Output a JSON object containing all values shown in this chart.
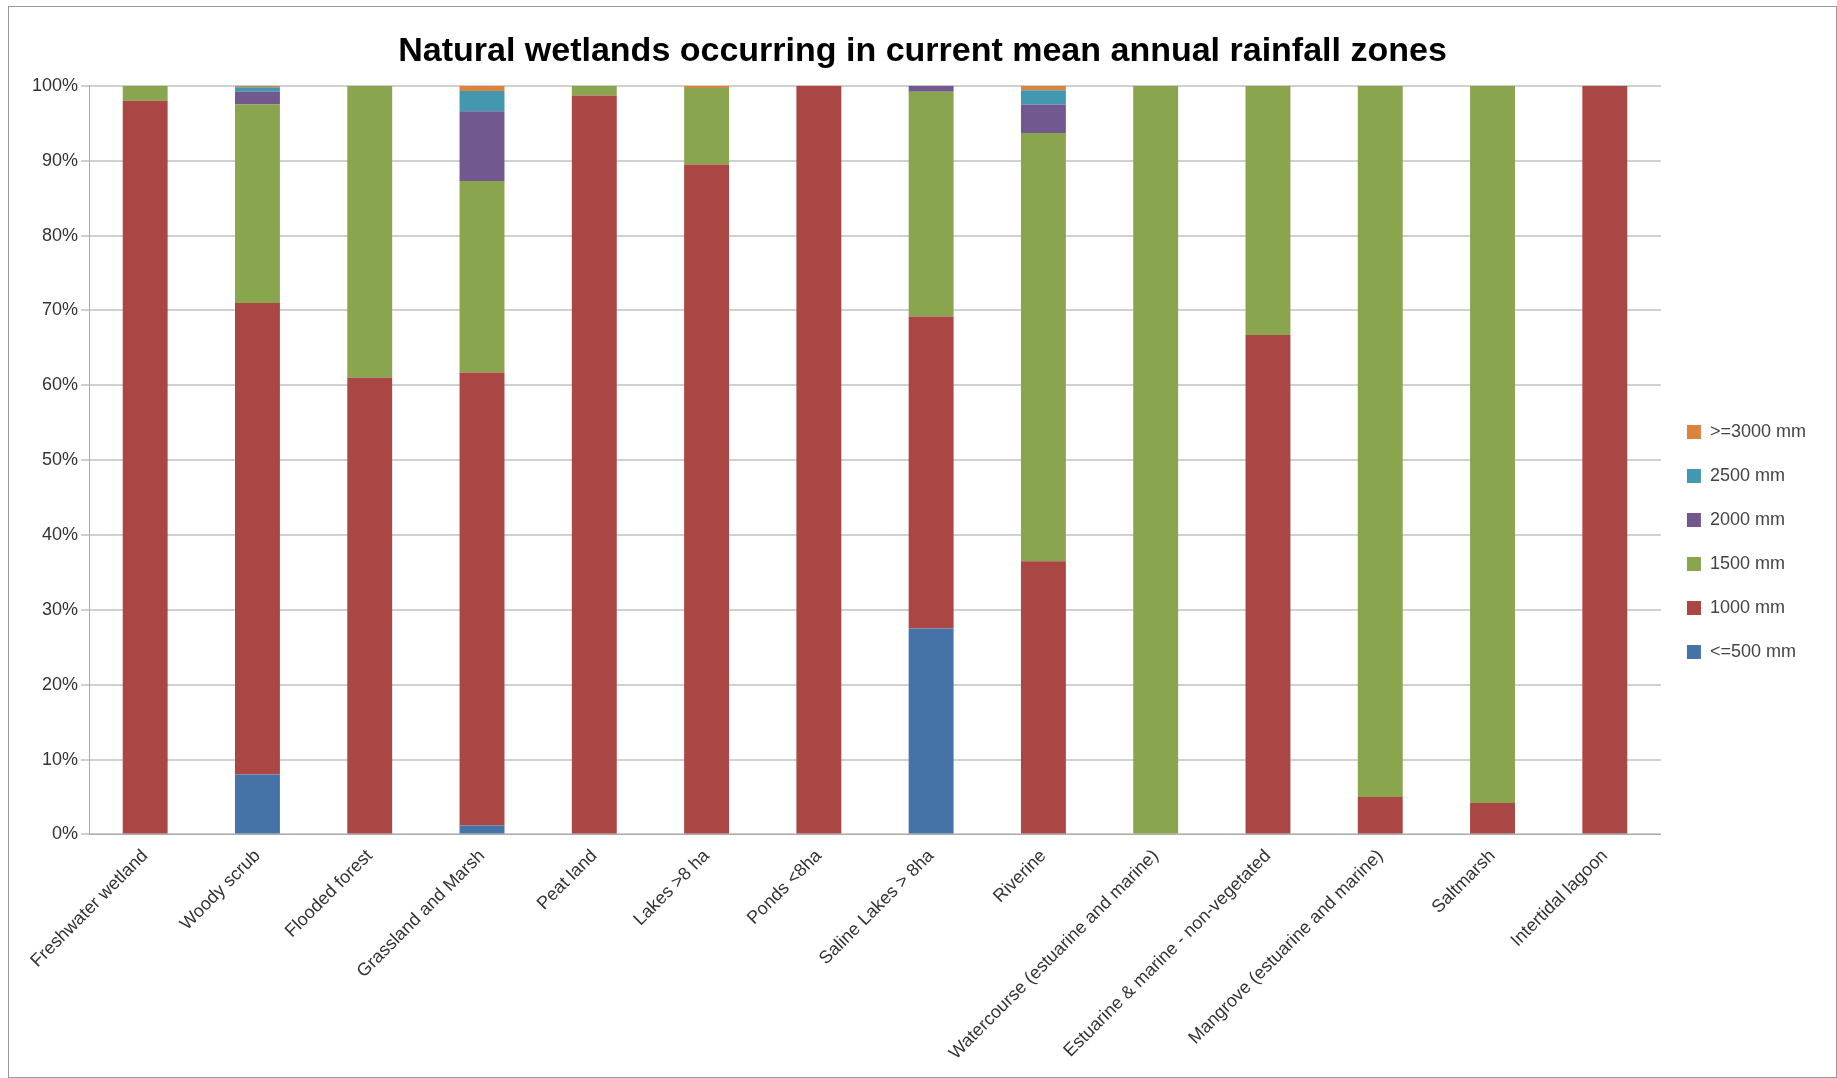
{
  "chart_data": {
    "type": "bar",
    "title": "Natural wetlands occurring in current mean annual rainfall zones",
    "stacked": true,
    "categories": [
      "Freshwater wetland",
      "Woody scrub",
      "Flooded forest",
      "Grassland and Marsh",
      "Peat land",
      "Lakes >8 ha",
      "Ponds <8ha",
      "Saline Lakes > 8ha",
      "Riverine",
      "Watercourse (estuarine and marine)",
      "Estuarine & marine - non-vegetated",
      "Mangrove (estuarine and marine)",
      "Saltmarsh",
      "Intertidal lagoon"
    ],
    "series": [
      {
        "name": "<=500 mm",
        "color": "#4572a7",
        "values": [
          0,
          8,
          0,
          1.2,
          0,
          0,
          0,
          27.5,
          0,
          0,
          0,
          0,
          0,
          0
        ]
      },
      {
        "name": "1000 mm",
        "color": "#aa4643",
        "values": [
          98,
          63,
          61,
          60.5,
          98.7,
          89.5,
          100,
          41.7,
          36.5,
          0,
          66.7,
          5,
          4.2,
          100
        ]
      },
      {
        "name": "1500 mm",
        "color": "#89a54e",
        "values": [
          2,
          26.5,
          39,
          25.6,
          1.3,
          10.2,
          0,
          30,
          57.2,
          100,
          33.3,
          95,
          95.8,
          0
        ]
      },
      {
        "name": "2000 mm",
        "color": "#71588f",
        "values": [
          0,
          1.7,
          0,
          9.3,
          0,
          0,
          0,
          0.8,
          3.8,
          0,
          0,
          0,
          0,
          0
        ]
      },
      {
        "name": "2500 mm",
        "color": "#4198af",
        "values": [
          0,
          0.6,
          0,
          2.7,
          0,
          0,
          0,
          0,
          1.9,
          0,
          0,
          0,
          0,
          0
        ]
      },
      {
        "name": ">=3000 mm",
        "color": "#db843d",
        "values": [
          0,
          0.2,
          0,
          0.7,
          0,
          0.3,
          0,
          0,
          0.6,
          0,
          0,
          0,
          0,
          0
        ]
      }
    ],
    "ylim": [
      0,
      100
    ],
    "yticks": [
      {
        "value": 0,
        "label": "0%"
      },
      {
        "value": 10,
        "label": "10%"
      },
      {
        "value": 20,
        "label": "20%"
      },
      {
        "value": 30,
        "label": "30%"
      },
      {
        "value": 40,
        "label": "40%"
      },
      {
        "value": 50,
        "label": "50%"
      },
      {
        "value": 60,
        "label": "60%"
      },
      {
        "value": 70,
        "label": "70%"
      },
      {
        "value": 80,
        "label": "80%"
      },
      {
        "value": 90,
        "label": "90%"
      },
      {
        "value": 100,
        "label": "100%"
      }
    ],
    "grid": "y",
    "legend": "right"
  }
}
